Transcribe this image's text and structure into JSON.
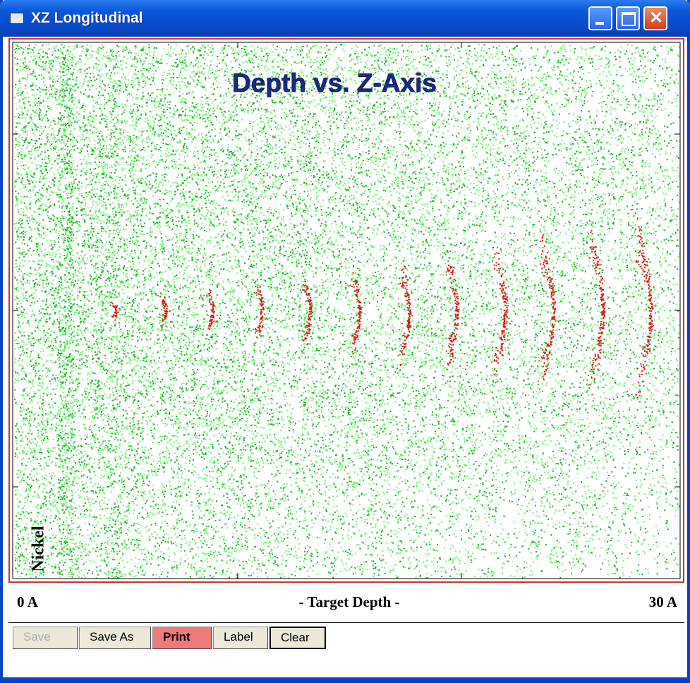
{
  "window": {
    "title": "XZ Longitudinal"
  },
  "plot": {
    "title": "Depth vs. Z-Axis",
    "side_label": "Nickel"
  },
  "axis": {
    "start": "0 A",
    "label": "- Target Depth -",
    "end": "30 A"
  },
  "buttons": [
    "Save",
    "Save As",
    "Print",
    "Label",
    "Clear"
  ]
}
